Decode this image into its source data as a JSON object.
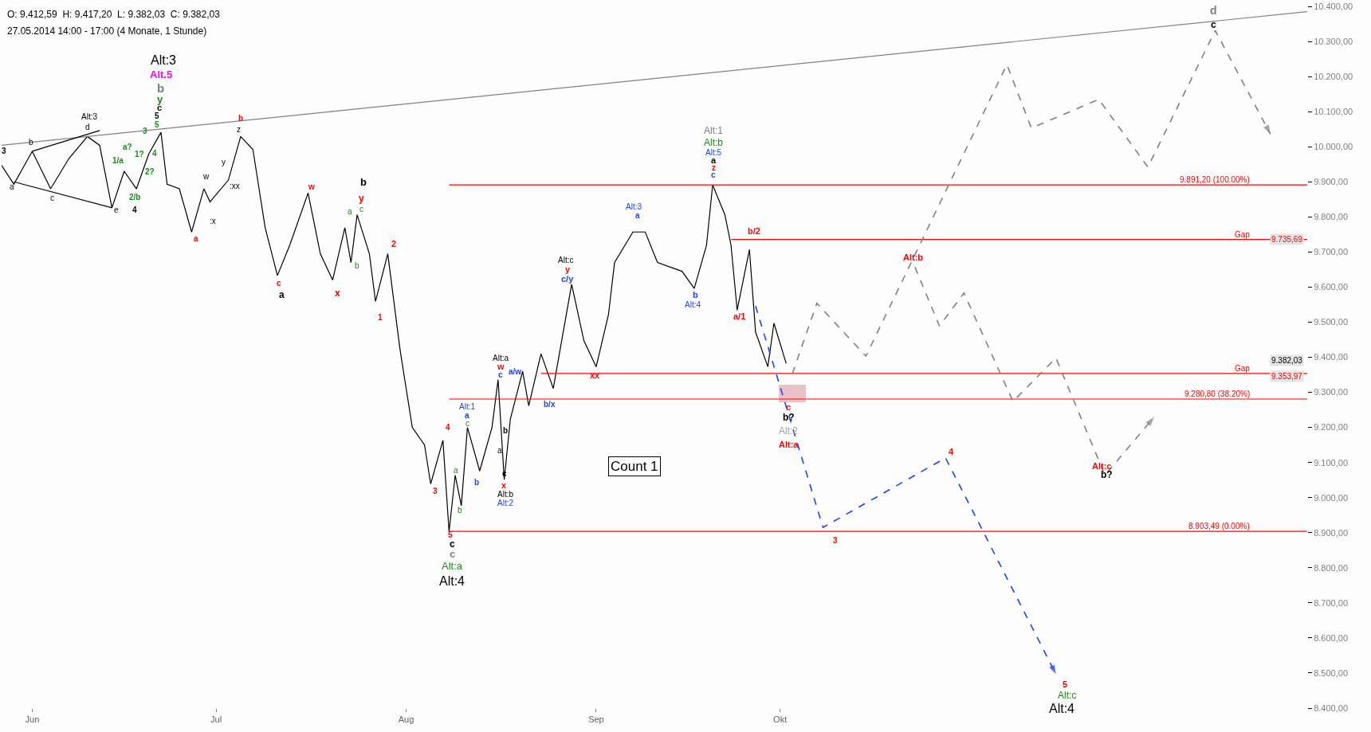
{
  "chart_data": {
    "type": "line",
    "title": "O: 9.412,59  H: 9.417,20  L: 9.382,03  C: 9.382,03",
    "subtitle": "27.05.2014 14:00 - 17:00 (4 Monate, 1 Stunde)",
    "xlim": [
      "2014-05-27",
      "2014-12-26"
    ],
    "xticks": [
      {
        "value": "2014-06-01",
        "label": "Jun"
      },
      {
        "value": "2014-07-01",
        "label": "Jul"
      },
      {
        "value": "2014-08-01",
        "label": "Aug"
      },
      {
        "value": "2014-09-01",
        "label": "Sep"
      },
      {
        "value": "2014-10-01",
        "label": "Okt"
      }
    ],
    "ylim": [
      8400,
      10400
    ],
    "yticks": [
      {
        "value": 8400,
        "label": "8.400,00"
      },
      {
        "value": 8500,
        "label": "8.500,00"
      },
      {
        "value": 8600,
        "label": "8.600,00"
      },
      {
        "value": 8700,
        "label": "8.700,00"
      },
      {
        "value": 8800,
        "label": "8.800,00"
      },
      {
        "value": 8900,
        "label": "8.900,00"
      },
      {
        "value": 9000,
        "label": "9.000,00"
      },
      {
        "value": 9100,
        "label": "9.100,00"
      },
      {
        "value": 9200,
        "label": "9.200,00"
      },
      {
        "value": 9300,
        "label": "9.300,00"
      },
      {
        "value": 9400,
        "label": "9.400,00"
      },
      {
        "value": 9500,
        "label": "9.500,00"
      },
      {
        "value": 9600,
        "label": "9.600,00"
      },
      {
        "value": 9700,
        "label": "9.700,00"
      },
      {
        "value": 9800,
        "label": "9.800,00"
      },
      {
        "value": 9900,
        "label": "9.900,00"
      },
      {
        "value": 10000,
        "label": "10.000,00"
      },
      {
        "value": 10100,
        "label": "10.100,00"
      },
      {
        "value": 10200,
        "label": "10.200,00"
      },
      {
        "value": 10300,
        "label": "10.300,00"
      },
      {
        "value": 10400,
        "label": "10.400,00"
      }
    ],
    "legend": false,
    "series": [
      {
        "color": "#000000",
        "x": [
          "2014-05-27",
          "2014-05-29",
          "2014-06-01",
          "2014-06-04",
          "2014-06-07",
          "2014-06-10",
          "2014-06-12",
          "2014-06-14",
          "2014-06-16",
          "2014-06-18",
          "2014-06-20",
          "2014-06-22",
          "2014-06-23",
          "2014-06-25",
          "2014-06-27",
          "2014-06-29",
          "2014-06-30",
          "2014-07-03",
          "2014-07-05",
          "2014-07-07",
          "2014-07-09",
          "2014-07-11",
          "2014-07-13",
          "2014-07-16",
          "2014-07-18",
          "2014-07-20",
          "2014-07-22",
          "2014-07-23",
          "2014-07-24",
          "2014-07-26",
          "2014-07-27",
          "2014-07-29",
          "2014-07-31",
          "2014-08-02",
          "2014-08-04",
          "2014-08-05",
          "2014-08-07",
          "2014-08-08",
          "2014-08-09",
          "2014-08-10",
          "2014-08-11",
          "2014-08-13",
          "2014-08-15",
          "2014-08-16",
          "2014-08-17",
          "2014-08-18",
          "2014-08-20",
          "2014-08-21",
          "2014-08-23",
          "2014-08-25",
          "2014-08-28",
          "2014-08-30",
          "2014-09-01",
          "2014-09-03",
          "2014-09-04",
          "2014-09-07",
          "2014-09-09",
          "2014-09-11",
          "2014-09-15",
          "2014-09-17",
          "2014-09-19",
          "2014-09-20",
          "2014-09-22",
          "2014-09-23",
          "2014-09-24",
          "2014-09-26",
          "2014-09-27",
          "2014-09-29",
          "2014-09-30",
          "2014-10-02"
        ],
        "values": [
          9947,
          9893,
          9987,
          9880,
          9967,
          10029,
          10004,
          9826,
          9930,
          9880,
          9979,
          10041,
          9893,
          9880,
          9757,
          9880,
          9843,
          9905,
          10029,
          9992,
          9769,
          9633,
          9719,
          9868,
          9695,
          9620,
          9769,
          9670,
          9806,
          9695,
          9559,
          9695,
          9422,
          9200,
          9150,
          9039,
          9163,
          8903,
          9064,
          8977,
          9200,
          9076,
          9200,
          9336,
          9051,
          9224,
          9360,
          9262,
          9410,
          9311,
          9608,
          9447,
          9373,
          9521,
          9670,
          9757,
          9757,
          9670,
          9645,
          9596,
          9719,
          9891,
          9806,
          9719,
          9534,
          9707,
          9472,
          9373,
          9497,
          9382
        ]
      },
      {
        "color": "#808080",
        "x": [
          "2014-05-27",
          "2014-12-26"
        ],
        "values": [
          10004,
          10385
        ]
      },
      {
        "color": "#000000",
        "x": [
          "2014-06-01",
          "2014-06-12"
        ],
        "values": [
          9987,
          10046
        ]
      },
      {
        "color": "#000000",
        "x": [
          "2014-05-29",
          "2014-06-14"
        ],
        "values": [
          9900,
          9826
        ]
      },
      {
        "color": "#ff0000",
        "name": "9.891,20 (100.00%)",
        "x": [
          "2014-08-08",
          "2014-12-26"
        ],
        "values": [
          9891.2,
          9891.2
        ]
      },
      {
        "color": "#ff0000",
        "name": "Gap",
        "x": [
          "2014-09-23",
          "2014-12-26"
        ],
        "values": [
          9735.69,
          9735.69
        ]
      },
      {
        "color": "#ff0000",
        "name": "Gap",
        "x": [
          "2014-08-23",
          "2014-12-26"
        ],
        "values": [
          9353.97,
          9353.97
        ]
      },
      {
        "color": "#ff0000",
        "name": "9.280,80 (38.20%)",
        "x": [
          "2014-08-08",
          "2014-12-26"
        ],
        "values": [
          9280.8,
          9280.8
        ]
      },
      {
        "color": "#ff0000",
        "name": "8.903,49 (0.00%)",
        "x": [
          "2014-08-08",
          "2014-12-26"
        ],
        "values": [
          8903.49,
          8903.49
        ]
      },
      {
        "color": "#808080",
        "line_style": "dashed",
        "x": [
          "2014-10-03",
          "2014-10-07",
          "2014-10-15",
          "2014-11-07",
          "2014-11-11",
          "2014-11-22",
          "2014-11-30",
          "2014-12-11",
          "2014-12-20"
        ],
        "values": [
          9353,
          9554,
          9403,
          10234,
          10053,
          10135,
          9942,
          10331,
          10036
        ]
      },
      {
        "color": "#808080",
        "line_style": "dashed",
        "x": [
          "2014-10-23",
          "2014-10-27",
          "2014-10-31",
          "2014-11-08",
          "2014-11-15",
          "2014-11-23",
          "2014-12-01"
        ],
        "values": [
          9657,
          9489,
          9583,
          9274,
          9398,
          9064,
          9229
        ]
      },
      {
        "color": "#1f3fff",
        "line_style": "dashed",
        "x": [
          "2014-09-27",
          "2014-10-08",
          "2014-10-28",
          "2014-11-15"
        ],
        "values": [
          9546,
          8915,
          9113,
          8497
        ]
      },
      {
        "type": "bar",
        "color": "#e8bcc2",
        "x": [
          "2014-10-03"
        ],
        "base": [
          9271
        ],
        "values": [
          50
        ]
      }
    ],
    "annotations": [
      "Count 1",
      "9.735,69",
      "9.382,03",
      "9.353,97",
      "3",
      "a",
      "b",
      "c",
      "Alt:3",
      "d",
      "e",
      "1/a",
      "a?",
      "1?",
      "2?",
      "2/b",
      "4",
      "3",
      "4",
      "5",
      "5",
      "c",
      "y",
      "b",
      "Alt.5",
      "Alt:3",
      "w",
      ":x",
      "a",
      "y",
      ":xx",
      "z",
      "b",
      "c",
      "a",
      "w",
      "x",
      "b",
      "y",
      "a",
      "c",
      "b",
      "2",
      "1",
      "3",
      "4",
      "5",
      "c",
      "c",
      "Alt:a",
      "Alt:4",
      "a",
      "b",
      "Alt:1",
      "a",
      "c",
      "b",
      "Alt:a",
      "w",
      "c",
      "a/w",
      "b",
      "a",
      "c",
      "x",
      "Alt:b",
      "Alt:2",
      "b/x",
      "Alt:c",
      "y",
      "c/y",
      "xx",
      "Alt:3",
      "a",
      "b",
      "Alt:4",
      "Alt:1",
      "Alt:b",
      "Alt:5",
      "a",
      "z",
      "c",
      "b/2",
      "a/1",
      "c",
      "b?",
      "Alt:2",
      "Alt:a",
      "Alt:b",
      "Alt:c",
      "b?",
      "4",
      "3",
      "5",
      "Alt:c",
      "Alt:4",
      "d",
      "c"
    ]
  }
}
